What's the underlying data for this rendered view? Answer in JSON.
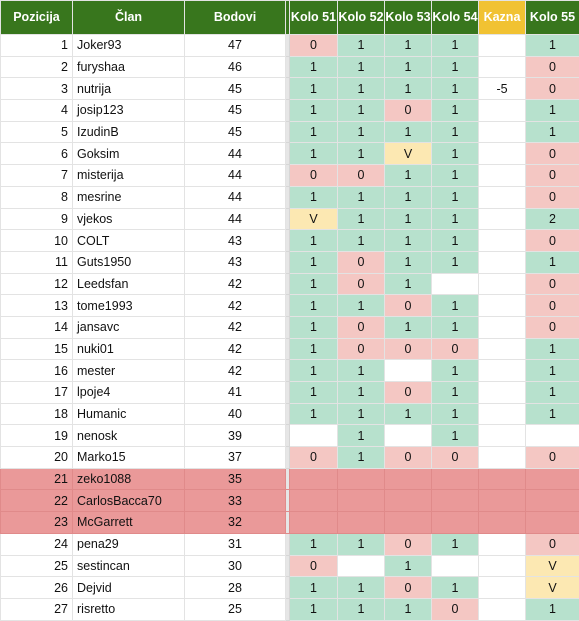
{
  "colors": {
    "header_green": "#38761d",
    "header_kazna": "#f1c232",
    "cell_green": "#b7e1cd",
    "cell_red": "#f4c7c3",
    "cell_yellow": "#fce8b2",
    "row_highlight": "#ea9999"
  },
  "headers": {
    "pozicija": "Pozicija",
    "clan": "Član",
    "bodovi": "Bodovi",
    "kolo51": "Kolo 51",
    "kolo52": "Kolo 52",
    "kolo53": "Kolo 53",
    "kolo54": "Kolo 54",
    "kazna": "Kazna",
    "kolo55": "Kolo 55"
  },
  "rows": [
    {
      "pos": "1",
      "name": "Joker93",
      "pts": "47",
      "k51": "0",
      "k52": "1",
      "k53": "1",
      "k54": "1",
      "kazna": "",
      "k55": "1"
    },
    {
      "pos": "2",
      "name": "furyshaa",
      "pts": "46",
      "k51": "1",
      "k52": "1",
      "k53": "1",
      "k54": "1",
      "kazna": "",
      "k55": "0"
    },
    {
      "pos": "3",
      "name": "nutrija",
      "pts": "45",
      "k51": "1",
      "k52": "1",
      "k53": "1",
      "k54": "1",
      "kazna": "-5",
      "k55": "0"
    },
    {
      "pos": "4",
      "name": "josip123",
      "pts": "45",
      "k51": "1",
      "k52": "1",
      "k53": "0",
      "k54": "1",
      "kazna": "",
      "k55": "1"
    },
    {
      "pos": "5",
      "name": "IzudinB",
      "pts": "45",
      "k51": "1",
      "k52": "1",
      "k53": "1",
      "k54": "1",
      "kazna": "",
      "k55": "1"
    },
    {
      "pos": "6",
      "name": "Goksim",
      "pts": "44",
      "k51": "1",
      "k52": "1",
      "k53": "V",
      "k54": "1",
      "kazna": "",
      "k55": "0"
    },
    {
      "pos": "7",
      "name": "misterija",
      "pts": "44",
      "k51": "0",
      "k52": "0",
      "k53": "1",
      "k54": "1",
      "kazna": "",
      "k55": "0"
    },
    {
      "pos": "8",
      "name": "mesrine",
      "pts": "44",
      "k51": "1",
      "k52": "1",
      "k53": "1",
      "k54": "1",
      "kazna": "",
      "k55": "0"
    },
    {
      "pos": "9",
      "name": "vjekos",
      "pts": "44",
      "k51": "V",
      "k52": "1",
      "k53": "1",
      "k54": "1",
      "kazna": "",
      "k55": "2"
    },
    {
      "pos": "10",
      "name": "COLT",
      "pts": "43",
      "k51": "1",
      "k52": "1",
      "k53": "1",
      "k54": "1",
      "kazna": "",
      "k55": "0"
    },
    {
      "pos": "11",
      "name": "Guts1950",
      "pts": "43",
      "k51": "1",
      "k52": "0",
      "k53": "1",
      "k54": "1",
      "kazna": "",
      "k55": "1"
    },
    {
      "pos": "12",
      "name": "Leedsfan",
      "pts": "42",
      "k51": "1",
      "k52": "0",
      "k53": "1",
      "k54": "",
      "kazna": "",
      "k55": "0"
    },
    {
      "pos": "13",
      "name": "tome1993",
      "pts": "42",
      "k51": "1",
      "k52": "1",
      "k53": "0",
      "k54": "1",
      "kazna": "",
      "k55": "0"
    },
    {
      "pos": "14",
      "name": "jansavc",
      "pts": "42",
      "k51": "1",
      "k52": "0",
      "k53": "1",
      "k54": "1",
      "kazna": "",
      "k55": "0"
    },
    {
      "pos": "15",
      "name": "nuki01",
      "pts": "42",
      "k51": "1",
      "k52": "0",
      "k53": "0",
      "k54": "0",
      "kazna": "",
      "k55": "1"
    },
    {
      "pos": "16",
      "name": "mester",
      "pts": "42",
      "k51": "1",
      "k52": "1",
      "k53": "",
      "k54": "1",
      "kazna": "",
      "k55": "1"
    },
    {
      "pos": "17",
      "name": "lpoje4",
      "pts": "41",
      "k51": "1",
      "k52": "1",
      "k53": "0",
      "k54": "1",
      "kazna": "",
      "k55": "1"
    },
    {
      "pos": "18",
      "name": "Humanic",
      "pts": "40",
      "k51": "1",
      "k52": "1",
      "k53": "1",
      "k54": "1",
      "kazna": "",
      "k55": "1"
    },
    {
      "pos": "19",
      "name": "nenosk",
      "pts": "39",
      "k51": "",
      "k52": "1",
      "k53": "",
      "k54": "1",
      "kazna": "",
      "k55": ""
    },
    {
      "pos": "20",
      "name": "Marko15",
      "pts": "37",
      "k51": "0",
      "k52": "1",
      "k53": "0",
      "k54": "0",
      "kazna": "",
      "k55": "0"
    },
    {
      "pos": "21",
      "name": "zeko1088",
      "pts": "35",
      "k51": "",
      "k52": "",
      "k53": "",
      "k54": "",
      "kazna": "",
      "k55": "",
      "hl": true
    },
    {
      "pos": "22",
      "name": "CarlosBacca70",
      "pts": "33",
      "k51": "",
      "k52": "",
      "k53": "",
      "k54": "",
      "kazna": "",
      "k55": "",
      "hl": true
    },
    {
      "pos": "23",
      "name": "McGarrett",
      "pts": "32",
      "k51": "",
      "k52": "",
      "k53": "",
      "k54": "",
      "kazna": "",
      "k55": "",
      "hl": true
    },
    {
      "pos": "24",
      "name": "pena29",
      "pts": "31",
      "k51": "1",
      "k52": "1",
      "k53": "0",
      "k54": "1",
      "kazna": "",
      "k55": "0"
    },
    {
      "pos": "25",
      "name": "sestincan",
      "pts": "30",
      "k51": "0",
      "k52": "",
      "k53": "1",
      "k54": "",
      "kazna": "",
      "k55": "V"
    },
    {
      "pos": "26",
      "name": "Dejvid",
      "pts": "28",
      "k51": "1",
      "k52": "1",
      "k53": "0",
      "k54": "1",
      "kazna": "",
      "k55": "V"
    },
    {
      "pos": "27",
      "name": "risretto",
      "pts": "25",
      "k51": "1",
      "k52": "1",
      "k53": "1",
      "k54": "0",
      "kazna": "",
      "k55": "1"
    }
  ]
}
